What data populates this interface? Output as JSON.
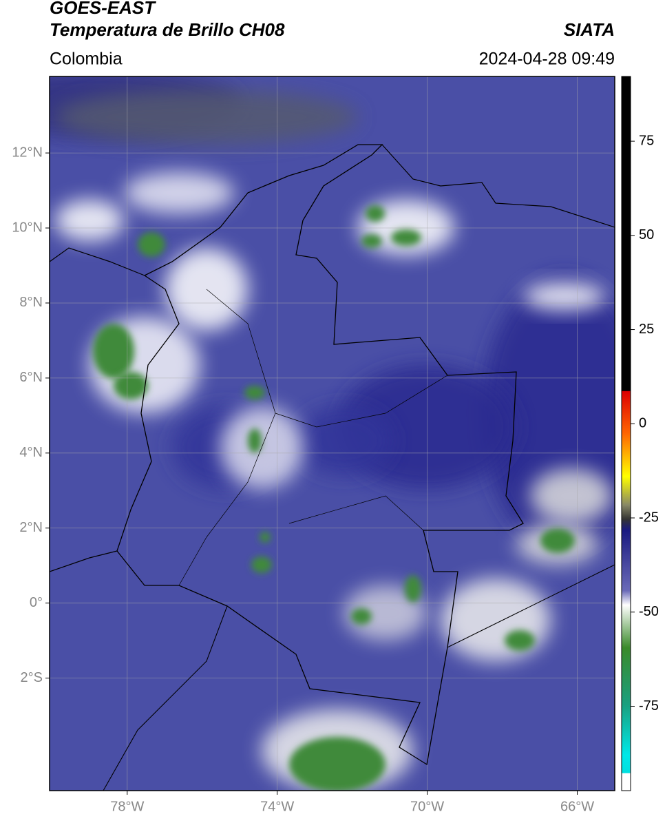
{
  "header": {
    "title_line1": "GOES-EAST",
    "title_line2": "Temperatura de Brillo CH08",
    "region": "Colombia",
    "source": "SIATA",
    "datetime": "2024-04-28 09:49"
  },
  "map": {
    "xlim": [
      -80.07,
      -65.0
    ],
    "ylim": [
      -5.0,
      14.04
    ],
    "xticks": [
      {
        "value": -78,
        "label": "78°W"
      },
      {
        "value": -74,
        "label": "74°W"
      },
      {
        "value": -70,
        "label": "70°W"
      },
      {
        "value": -66,
        "label": "66°W"
      }
    ],
    "yticks": [
      {
        "value": 12,
        "label": "12°N"
      },
      {
        "value": 10,
        "label": "10°N"
      },
      {
        "value": 8,
        "label": "8°N"
      },
      {
        "value": 6,
        "label": "6°N"
      },
      {
        "value": 4,
        "label": "4°N"
      },
      {
        "value": 2,
        "label": "2°N"
      },
      {
        "value": 0,
        "label": "0°"
      },
      {
        "value": -2,
        "label": "2°S"
      }
    ],
    "grid": true
  },
  "colorbar": {
    "lim": [
      -97.4,
      92.2
    ],
    "ticks": [
      75,
      50,
      25,
      0,
      -25,
      -50,
      -75
    ]
  }
}
